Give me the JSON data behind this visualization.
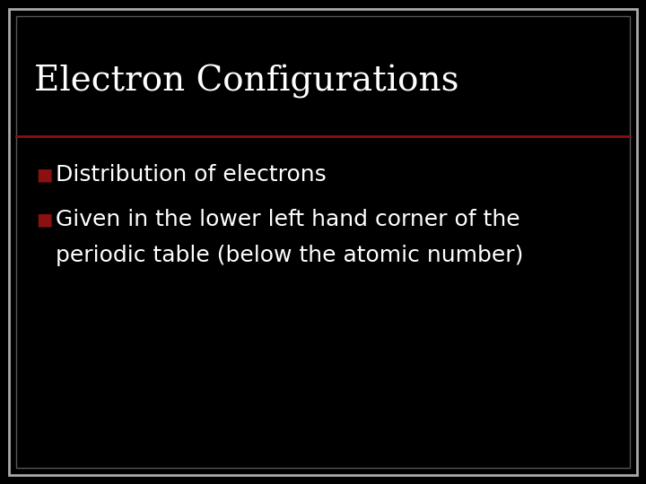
{
  "title": "Electron Configurations",
  "bullet1": "Distribution of electrons",
  "bullet2_line1": "Given in the lower left hand corner of the",
  "bullet2_line2": "periodic table (below the atomic number)",
  "bg_color": "#000000",
  "outer_border_color": "#aaaaaa",
  "inner_border_color": "#333333",
  "slide_bg": "#000000",
  "title_color": "#ffffff",
  "bullet_color": "#ffffff",
  "bullet_marker_color": "#8b1010",
  "divider_color": "#8b1010",
  "title_fontsize": 28,
  "bullet_fontsize": 18
}
